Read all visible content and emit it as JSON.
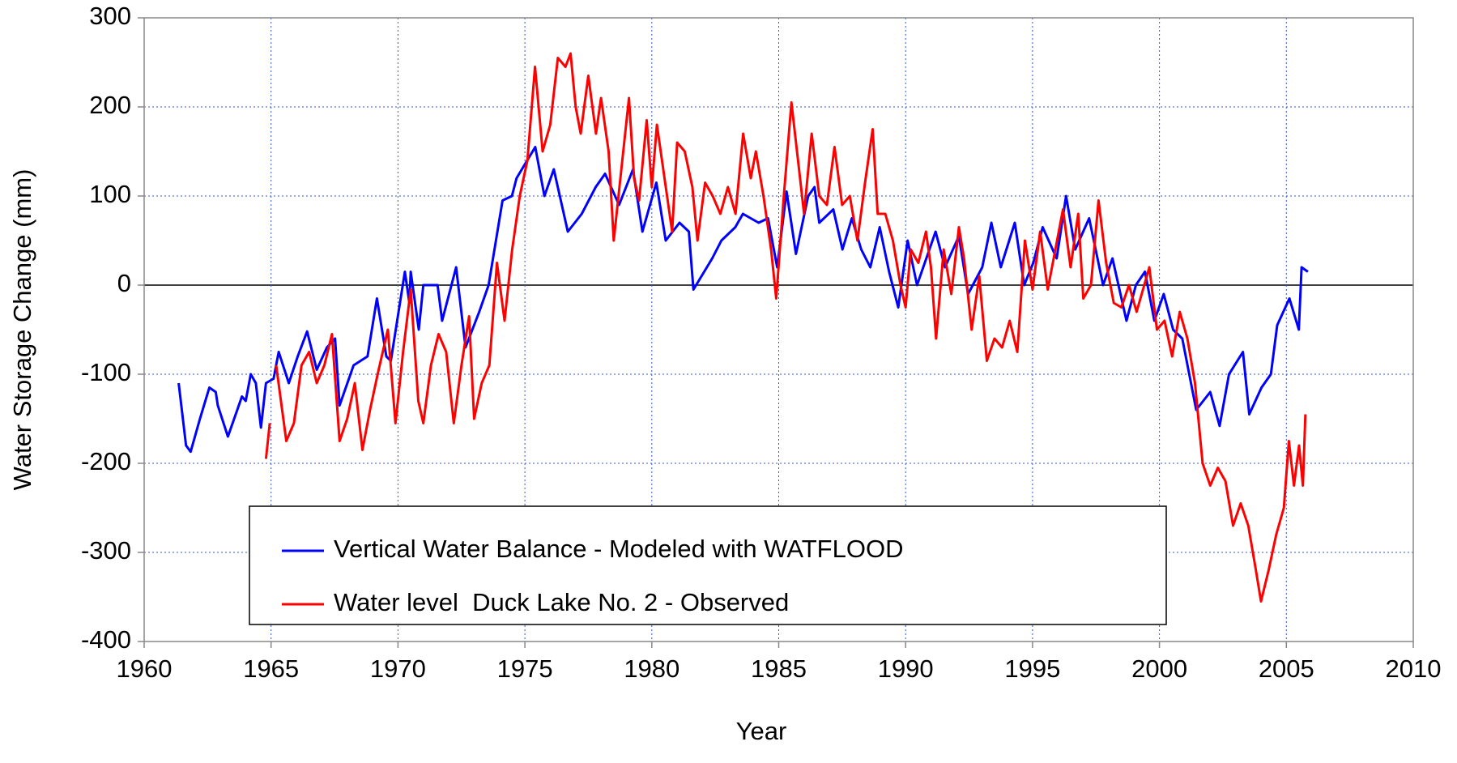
{
  "chart_data": {
    "type": "line",
    "xlabel": "Year",
    "ylabel": "Water Storage Change (mm)",
    "xlim": [
      1960,
      2010
    ],
    "xticks": [
      1960,
      1965,
      1970,
      1975,
      1980,
      1985,
      1990,
      1995,
      2000,
      2005,
      2010
    ],
    "ylim": [
      -400,
      300
    ],
    "yticks": [
      -400,
      -300,
      -200,
      -100,
      0,
      100,
      200,
      300
    ],
    "grid": true,
    "legend": "lower center",
    "series": [
      {
        "name": "Vertical Water Balance - Modeled with WATFLOOD",
        "color": "#0000ff",
        "x": [
          1961.36,
          1961.65,
          1961.83,
          1962.2,
          1962.57,
          1962.82,
          1962.9,
          1963.3,
          1963.67,
          1963.85,
          1964.0,
          1964.2,
          1964.4,
          1964.6,
          1964.8,
          1965.1,
          1965.3,
          1965.7,
          1966.05,
          1966.42,
          1966.8,
          1967.2,
          1967.52,
          1967.7,
          1968.25,
          1968.8,
          1969.17,
          1969.54,
          1969.72,
          1970.27,
          1970.45,
          1970.5,
          1970.82,
          1971.0,
          1971.56,
          1971.74,
          1972.29,
          1972.66,
          1973.2,
          1973.57,
          1974.12,
          1974.49,
          1974.67,
          1975.41,
          1975.77,
          1976.14,
          1976.69,
          1977.24,
          1977.79,
          1978.16,
          1978.71,
          1979.26,
          1979.63,
          1980.18,
          1980.55,
          1981.09,
          1981.46,
          1981.64,
          1982.38,
          1982.74,
          1983.29,
          1983.59,
          1984.21,
          1984.58,
          1984.94,
          1985.31,
          1985.68,
          1986.16,
          1986.41,
          1986.6,
          1987.15,
          1987.51,
          1987.88,
          1988.25,
          1988.61,
          1988.98,
          1989.35,
          1989.71,
          1990.08,
          1990.45,
          1991.18,
          1991.55,
          1992.1,
          1992.46,
          1993.02,
          1993.38,
          1993.75,
          1994.3,
          1994.67,
          1995.03,
          1995.4,
          1995.95,
          1996.32,
          1996.68,
          1997.23,
          1997.78,
          1998.15,
          1998.7,
          1999.07,
          1999.43,
          1999.8,
          2000.17,
          2000.54,
          2000.9,
          2001.45,
          2002.0,
          2002.37,
          2002.74,
          2003.29,
          2003.54,
          2004.02,
          2004.39,
          2004.64,
          2005.12,
          2005.49,
          2005.6,
          2005.85
        ],
        "values": [
          -110,
          -180,
          -187,
          -150,
          -115,
          -120,
          -135,
          -170,
          -140,
          -125,
          -130,
          -100,
          -110,
          -160,
          -110,
          -105,
          -75,
          -110,
          -80,
          -52,
          -95,
          -70,
          -60,
          -135,
          -90,
          -80,
          -15,
          -80,
          -85,
          15,
          -20,
          15,
          -50,
          0,
          0,
          -40,
          20,
          -70,
          -30,
          0,
          95,
          100,
          120,
          155,
          100,
          130,
          60,
          80,
          110,
          125,
          90,
          130,
          60,
          115,
          50,
          70,
          60,
          -5,
          30,
          50,
          65,
          80,
          70,
          75,
          20,
          105,
          35,
          100,
          110,
          70,
          85,
          40,
          75,
          40,
          20,
          65,
          15,
          -25,
          50,
          0,
          60,
          20,
          55,
          -10,
          20,
          70,
          20,
          70,
          0,
          25,
          65,
          30,
          100,
          40,
          75,
          0,
          30,
          -40,
          0,
          15,
          -40,
          -10,
          -50,
          -60,
          -140,
          -120,
          -158,
          -100,
          -75,
          -145,
          -115,
          -100,
          -45,
          -15,
          -50,
          20,
          15
        ]
      },
      {
        "name": "Water level  Duck Lake No. 2 - Observed",
        "color": "#ff0000",
        "x": [
          1964.8,
          1964.95,
          1965.05,
          1965.2,
          1965.6,
          1965.9,
          1966.2,
          1966.5,
          1966.8,
          1967.1,
          1967.4,
          1967.7,
          1968.0,
          1968.3,
          1968.6,
          1968.9,
          1969.2,
          1969.6,
          1969.9,
          1970.2,
          1970.5,
          1970.8,
          1971.0,
          1971.3,
          1971.6,
          1971.9,
          1972.2,
          1972.5,
          1972.8,
          1973.0,
          1973.3,
          1973.6,
          1973.9,
          1974.2,
          1974.5,
          1974.8,
          1975.1,
          1975.4,
          1975.7,
          1976.0,
          1976.3,
          1976.6,
          1976.8,
          1977.0,
          1977.2,
          1977.5,
          1977.8,
          1978.0,
          1978.3,
          1978.5,
          1978.8,
          1979.1,
          1979.3,
          1979.5,
          1979.8,
          1980.0,
          1980.2,
          1980.5,
          1980.8,
          1981.0,
          1981.3,
          1981.6,
          1981.8,
          1982.1,
          1982.4,
          1982.7,
          1983.0,
          1983.3,
          1983.6,
          1983.9,
          1984.1,
          1984.4,
          1984.7,
          1984.9,
          1985.2,
          1985.5,
          1985.8,
          1986.0,
          1986.3,
          1986.6,
          1986.9,
          1987.2,
          1987.5,
          1987.8,
          1988.1,
          1988.4,
          1988.7,
          1988.9,
          1989.2,
          1989.5,
          1989.8,
          1990.0,
          1990.2,
          1990.5,
          1990.8,
          1991.0,
          1991.2,
          1991.5,
          1991.8,
          1992.1,
          1992.3,
          1992.6,
          1992.9,
          1993.2,
          1993.5,
          1993.8,
          1994.1,
          1994.4,
          1994.7,
          1995.0,
          1995.3,
          1995.6,
          1995.9,
          1996.2,
          1996.5,
          1996.8,
          1997.0,
          1997.3,
          1997.6,
          1997.9,
          1998.2,
          1998.5,
          1998.8,
          1999.1,
          1999.3,
          1999.6,
          1999.9,
          2000.2,
          2000.5,
          2000.8,
          2001.1,
          2001.4,
          2001.7,
          2002.0,
          2002.3,
          2002.6,
          2002.9,
          2003.2,
          2003.5,
          2003.8,
          2004.0,
          2004.3,
          2004.6,
          2004.9,
          2005.1,
          2005.3,
          2005.5,
          2005.65,
          2005.75
        ],
        "values": [
          -195,
          -155,
          null,
          -90,
          -175,
          -155,
          -90,
          -75,
          -110,
          -90,
          -55,
          -175,
          -150,
          -110,
          -185,
          -140,
          -100,
          -50,
          -155,
          -75,
          -5,
          -130,
          -155,
          -90,
          -55,
          -75,
          -155,
          -90,
          -35,
          -150,
          -110,
          -90,
          25,
          -40,
          40,
          100,
          140,
          245,
          150,
          180,
          255,
          245,
          260,
          200,
          170,
          235,
          170,
          210,
          150,
          50,
          130,
          210,
          120,
          95,
          185,
          110,
          180,
          120,
          60,
          160,
          150,
          110,
          50,
          115,
          100,
          80,
          110,
          80,
          170,
          120,
          150,
          100,
          40,
          -15,
          100,
          205,
          130,
          80,
          170,
          100,
          90,
          155,
          90,
          100,
          50,
          115,
          175,
          80,
          80,
          50,
          0,
          -25,
          40,
          25,
          60,
          20,
          -60,
          40,
          -10,
          65,
          30,
          -50,
          10,
          -85,
          -60,
          -70,
          -40,
          -75,
          50,
          -5,
          60,
          -5,
          40,
          85,
          20,
          80,
          -15,
          0,
          95,
          25,
          -20,
          -25,
          0,
          -30,
          -10,
          20,
          -50,
          -40,
          -80,
          -30,
          -60,
          -110,
          -200,
          -225,
          -205,
          -220,
          -270,
          -245,
          -270,
          -320,
          -355,
          -320,
          -280,
          -250,
          -175,
          -225,
          -180,
          -225,
          -145
        ]
      }
    ]
  }
}
